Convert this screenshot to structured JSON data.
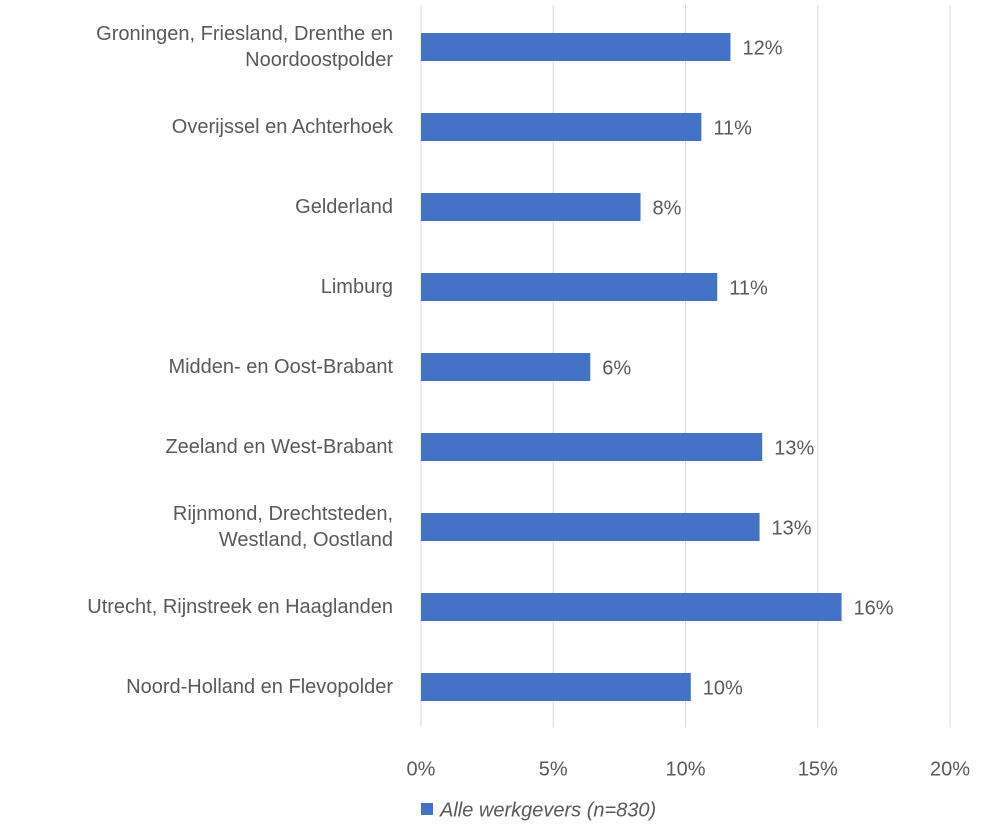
{
  "chart_data": {
    "type": "bar",
    "orientation": "horizontal",
    "categories": [
      "Groningen, Friesland, Drenthe en\nNoordoostpolder",
      "Overijssel en Achterhoek",
      "Gelderland",
      "Limburg",
      "Midden- en Oost-Brabant",
      "Zeeland en West-Brabant",
      "Rijnmond, Drechtsteden,\nWestland, Oostland",
      "Utrecht, Rijnstreek en Haaglanden",
      "Noord-Holland en Flevopolder"
    ],
    "series": [
      {
        "name": "Alle werkgevers (n=830)",
        "color": "#4472c4",
        "values": [
          11.7,
          10.6,
          8.3,
          11.2,
          6.4,
          12.9,
          12.8,
          15.9,
          10.2
        ],
        "value_labels": [
          "12%",
          "11%",
          "8%",
          "11%",
          "6%",
          "13%",
          "13%",
          "16%",
          "10%"
        ]
      }
    ],
    "xlim": [
      0,
      20
    ],
    "xticks": [
      {
        "value": 0,
        "label": "0%"
      },
      {
        "value": 5,
        "label": "5%"
      },
      {
        "value": 10,
        "label": "10%"
      },
      {
        "value": 15,
        "label": "15%"
      },
      {
        "value": 20,
        "label": "20%"
      }
    ],
    "grid": true,
    "legend": "bottom"
  }
}
